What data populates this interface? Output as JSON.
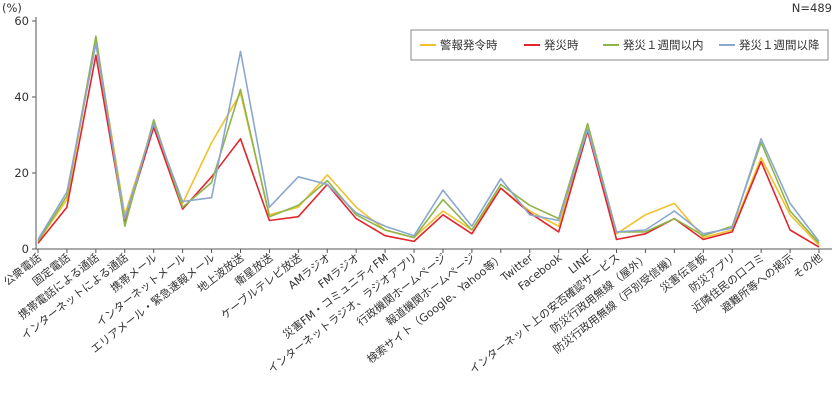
{
  "chart_data": {
    "type": "line",
    "unit_label": "(%)",
    "sample_note": "N=489",
    "ylim": [
      0,
      60
    ],
    "yticks": [
      0,
      20,
      40,
      60
    ],
    "grid": false,
    "legend_position": "top-right",
    "categories": [
      "公衆電話",
      "固定電話",
      "携帯電話による通話",
      "インターネットによる通話",
      "携帯メール",
      "インターネットメール",
      "エリアメール・緊急速報メール",
      "地上波放送",
      "衛星放送",
      "ケーブルテレビ放送",
      "AMラジオ",
      "FMラジオ",
      "災害FM・コミュニティFM",
      "インターネットラジオ、ラジオアプリ",
      "行政機関ホームページ",
      "報道機関ホームページ",
      "検索サイト（Google、Yahoo等）",
      "Twitter",
      "Facebook",
      "LINE",
      "インターネット上の安否確認サービス",
      "防災行政用無線（屋外）",
      "防災行政用無線（戸別受信機）",
      "災害伝言板",
      "防災アプリ",
      "近隣住民の口コミ",
      "避難所等への掲示",
      "その他"
    ],
    "series": [
      {
        "name": "警報発令時",
        "color": "#f2c12e",
        "values": [
          2,
          13,
          55,
          9,
          33,
          12,
          28,
          41,
          9,
          11,
          19.5,
          11,
          5,
          3,
          10,
          5,
          16,
          10,
          6,
          32,
          4,
          9,
          12,
          3,
          5,
          24,
          9,
          1
        ]
      },
      {
        "name": "発災時",
        "color": "#e0262b",
        "values": [
          1.5,
          11,
          51,
          7,
          32,
          10.5,
          19,
          29,
          7.5,
          8.5,
          17,
          8,
          3.5,
          2,
          9,
          4,
          16,
          9.5,
          4.5,
          31,
          2.5,
          4,
          8,
          2.5,
          4.5,
          23,
          5,
          0.5
        ]
      },
      {
        "name": "発災１週間以内",
        "color": "#8db54a",
        "values": [
          2,
          14,
          56,
          6,
          34,
          11,
          17.5,
          42,
          8.5,
          11.5,
          18,
          9,
          5,
          3,
          13,
          5,
          17,
          11.5,
          8,
          33,
          4.5,
          4.5,
          8,
          3.5,
          6,
          28,
          10,
          1.5
        ]
      },
      {
        "name": "発災１週間以降",
        "color": "#8ca7cf",
        "values": [
          2.5,
          15,
          54,
          8,
          33,
          12.5,
          13.5,
          52,
          11,
          19,
          17,
          9.5,
          6,
          3.5,
          15.5,
          6,
          18.5,
          9,
          7.5,
          31.5,
          4.5,
          5,
          10,
          4,
          5.5,
          29,
          12,
          2
        ]
      }
    ]
  }
}
